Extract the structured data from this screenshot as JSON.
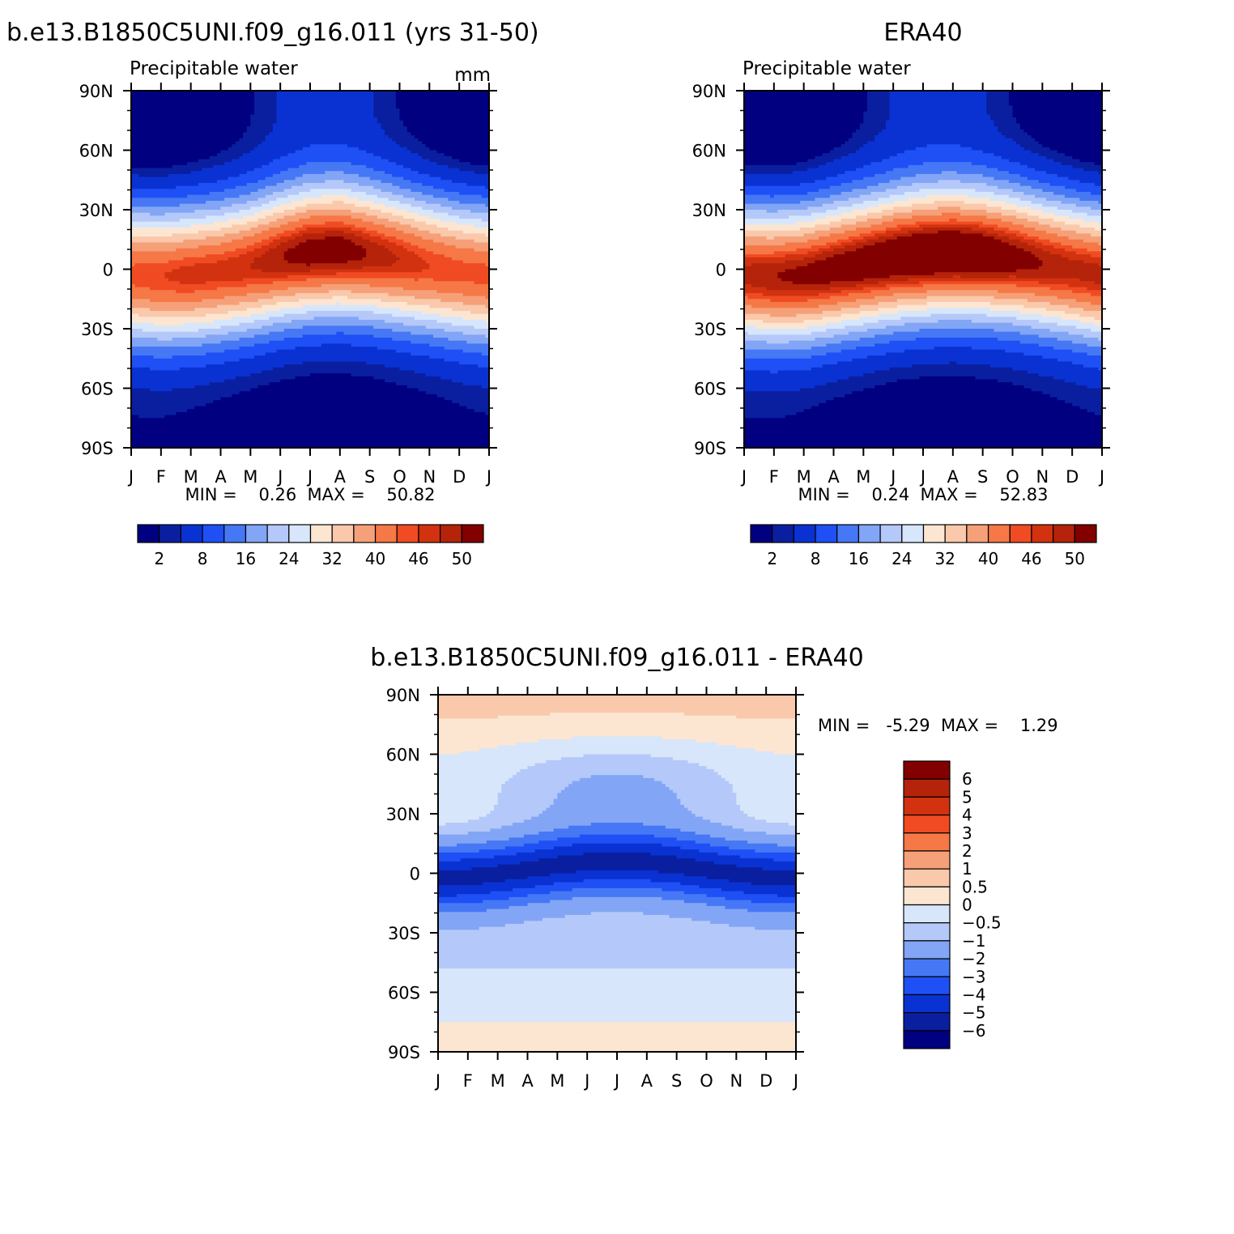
{
  "chart_data": [
    {
      "type": "heatmap",
      "id": "model",
      "title": "b.e13.B1850C5UNI.f09_g16.011 (yrs 31-50)",
      "subtitle": "Precipitable water",
      "units": "mm",
      "x_ticklabels": [
        "J",
        "F",
        "M",
        "A",
        "M",
        "J",
        "J",
        "A",
        "S",
        "O",
        "N",
        "D",
        "J"
      ],
      "y_ticklabels": [
        "90N",
        "60N",
        "30N",
        "0",
        "30S",
        "60S",
        "90S"
      ],
      "xlim": [
        0,
        12
      ],
      "ylim": [
        -90,
        90
      ],
      "stats": "MIN =    0.26  MAX =    50.82",
      "min": 0.26,
      "max": 50.82,
      "levels": [
        2,
        4,
        8,
        12,
        16,
        20,
        24,
        28,
        32,
        36,
        40,
        44,
        46,
        48,
        50
      ],
      "colorbar_labels": [
        "2",
        "8",
        "16",
        "24",
        "32",
        "40",
        "46",
        "50"
      ],
      "field": {
        "itcz_lat": [
          -3,
          -4,
          -3,
          -1,
          2,
          6,
          9,
          10,
          8,
          5,
          2,
          -1,
          -3
        ],
        "peak": [
          43,
          44,
          45,
          45,
          46,
          48,
          50,
          50,
          48,
          46,
          44,
          43,
          43
        ]
      }
    },
    {
      "type": "heatmap",
      "id": "obs",
      "title": "ERA40",
      "subtitle": "Precipitable water",
      "x_ticklabels": [
        "J",
        "F",
        "M",
        "A",
        "M",
        "J",
        "J",
        "A",
        "S",
        "O",
        "N",
        "D",
        "J"
      ],
      "y_ticklabels": [
        "90N",
        "60N",
        "30N",
        "0",
        "30S",
        "60S",
        "90S"
      ],
      "xlim": [
        0,
        12
      ],
      "ylim": [
        -90,
        90
      ],
      "stats": "MIN =    0.24  MAX =    52.83",
      "min": 0.24,
      "max": 52.83,
      "levels": [
        2,
        4,
        8,
        12,
        16,
        20,
        24,
        28,
        32,
        36,
        40,
        44,
        46,
        48,
        50
      ],
      "colorbar_labels": [
        "2",
        "8",
        "16",
        "24",
        "32",
        "40",
        "46",
        "50"
      ],
      "field": {
        "itcz_lat": [
          -3,
          -4,
          -3,
          0,
          3,
          6,
          8,
          9,
          8,
          6,
          3,
          0,
          -3
        ],
        "peak": [
          47,
          48,
          49,
          50,
          51,
          52,
          53,
          53,
          52,
          50,
          48,
          47,
          47
        ]
      }
    },
    {
      "type": "heatmap",
      "id": "diff",
      "title": "b.e13.B1850C5UNI.f09_g16.011 - ERA40",
      "x_ticklabels": [
        "J",
        "F",
        "M",
        "A",
        "M",
        "J",
        "J",
        "A",
        "S",
        "O",
        "N",
        "D",
        "J"
      ],
      "y_ticklabels": [
        "90N",
        "60N",
        "30N",
        "0",
        "30S",
        "60S",
        "90S"
      ],
      "xlim": [
        0,
        12
      ],
      "ylim": [
        -90,
        90
      ],
      "stats": "MIN =   -5.29  MAX =    1.29",
      "min": -5.29,
      "max": 1.29,
      "levels": [
        -6,
        -5,
        -4,
        -3,
        -2,
        -1,
        -0.5,
        0,
        0.5,
        1,
        2,
        3,
        4,
        5,
        6
      ],
      "colorbar_labels": [
        "6",
        "5",
        "4",
        "3",
        "2",
        "1",
        "0.5",
        "0",
        "-0.5",
        "-1",
        "-2",
        "-3",
        "-4",
        "-5",
        "-6"
      ]
    }
  ],
  "palette": {
    "model_obs": [
      "#000080",
      "#0a1fa0",
      "#0a32d2",
      "#1e50f5",
      "#4678f5",
      "#82a5f5",
      "#b4c8fa",
      "#d7e6fa",
      "#fce6d2",
      "#fac8aa",
      "#f5a078",
      "#f57846",
      "#f04b23",
      "#d2320f",
      "#b4230a",
      "#820000"
    ],
    "diff": [
      "#000080",
      "#0a1fa0",
      "#0a32d2",
      "#1e50f5",
      "#4678f5",
      "#82a5f5",
      "#b4c8fa",
      "#d7e6fa",
      "#fce6d2",
      "#fac8aa",
      "#f5a078",
      "#f57846",
      "#f04b23",
      "#d2320f",
      "#b4230a",
      "#820000"
    ]
  }
}
